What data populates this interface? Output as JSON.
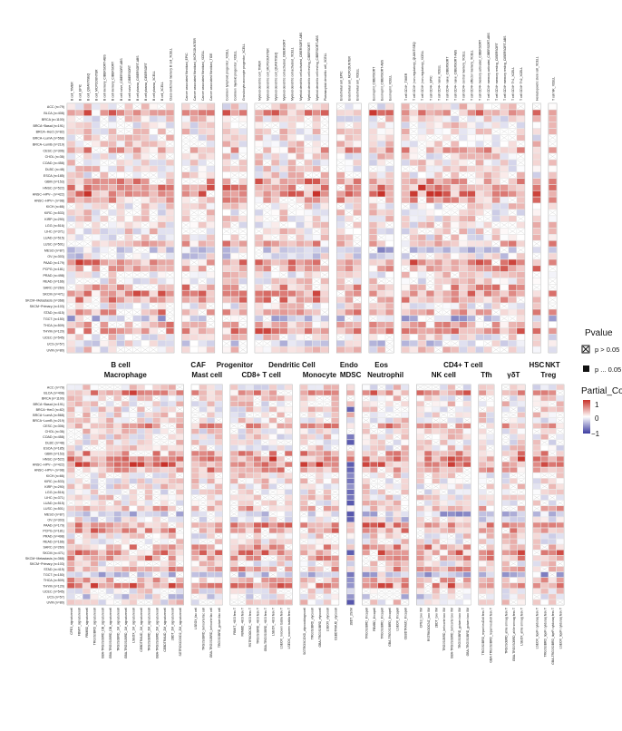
{
  "chart_data": {
    "type": "heatmap",
    "cancer_types": [
      "ACC (n=79)",
      "BLCA (n=408)",
      "BRCA (n=1100)",
      "BRCA−Basal (n=191)",
      "BRCA−Her2 (n=82)",
      "BRCA−LumA (n=568)",
      "BRCA−LumB (n=219)",
      "CESC (n=306)",
      "CHOL (n=36)",
      "COAD (n=458)",
      "DLBC (n=48)",
      "ESCA (n=185)",
      "GBM (n=153)",
      "HNSC (n=522)",
      "HNSC−HPV− (n=422)",
      "HNSC−HPV+ (n=98)",
      "KICH (n=66)",
      "KIRC (n=533)",
      "KIRP (n=290)",
      "LGG (n=516)",
      "LIHC (n=371)",
      "LUAD (n=515)",
      "LUSC (n=501)",
      "MESO (n=87)",
      "OV (n=303)",
      "PAAD (n=179)",
      "PCPG (n=181)",
      "PRAD (n=498)",
      "READ (n=166)",
      "SARC (n=260)",
      "SKCM (n=471)",
      "SKCM−Metastasis (n=368)",
      "SKCM−Primary (n=103)",
      "STAD (n=415)",
      "TGCT (n=150)",
      "THCA (n=509)",
      "THYM (n=120)",
      "UCEC (n=545)",
      "UCS (n=57)",
      "UVM (n=80)"
    ],
    "top_panel": [
      {
        "name": "B cell",
        "cells": [
          "B cell_TIMER",
          "B cell_EPIC",
          "B cell_QUANTISEQ",
          "B cell_MCPCOUNTER",
          "B cell memory_CIBERSORT-ABS",
          "B cell memory_CIBERSORT",
          "B cell naive_CIBERSORT-ABS",
          "B cell naive_CIBERSORT",
          "B cell plasma_CIBERSORT-ABS",
          "B cell plasma_CIBERSORT",
          "B cell plasma_XCELL",
          "B cell_XCELL",
          "Class-switched memory B cell_XCELL"
        ]
      },
      {
        "name": "CAF",
        "cells": [
          "Cancer associated fibroblast_EPIC",
          "Cancer associated fibroblast_MCPCOUNTER",
          "Cancer associated fibroblast_XCELL",
          "Cancer associated fibroblast_TIDE"
        ]
      },
      {
        "name": "Progenitor",
        "cells": [
          "Common lymphoid progenitor_XCELL",
          "Common myeloid progenitor_XCELL",
          "Granulocyte-monocyte progenitor_XCELL"
        ]
      },
      {
        "name": "Dendritic Cell",
        "cells": [
          "Myeloid dendritic cell_TIMER",
          "Myeloid dendritic cell_MCPCOUNTER",
          "Myeloid dendritic cell_QUANTISEQ",
          "Myeloid dendritic cell activated_CIBERSORT",
          "Myeloid dendritic cell activated_XCELL",
          "Myeloid dendritic cell activated_CIBERSORT-ABS",
          "Myeloid dendritic cell resting_CIBERSORT",
          "Myeloid dendritic cell resting_CIBERSORT-ABS",
          "Plasmacytoid dendritic cell_XCELL"
        ]
      },
      {
        "name": "Endo",
        "cells": [
          "Endothelial cell_EPIC",
          "Endothelial cell_MCPCOUNTER",
          "Endothelial cell_XCELL"
        ]
      },
      {
        "name": "Eos",
        "cells": [
          "Eosinophil_CIBERSORT",
          "Eosinophil_CIBERSORT-ABS",
          "Eosinophil_XCELL"
        ]
      },
      {
        "name": "CD4+ T cell",
        "cells": [
          "T cell CD4+_TIMER",
          "T cell CD4+ (non-regulatory)_QUANTISEQ",
          "T cell CD4+ (non-regulatory)_XCELL",
          "T cell CD4+_EPIC",
          "T cell CD4+ naive_XCELL",
          "T cell CD4+ naive_CIBERSORT",
          "T cell CD4+ naive_CIBERSORT-ABS",
          "T cell CD4+ central memory_XCELL",
          "T cell CD4+ effector memory_XCELL",
          "T cell CD4+ memory activated_CIBERSORT",
          "T cell CD4+ memory activated_CIBERSORT-ABS",
          "T cell CD4+ memory resting_CIBERSORT",
          "T cell CD4+ memory resting_CIBERSORT-ABS",
          "T cell CD4+ Th1_XCELL",
          "T cell CD4+ Th2_XCELL"
        ]
      },
      {
        "name": "HSC",
        "cells": [
          "Hematopoietic stem cell_XCELL"
        ]
      },
      {
        "name": "NKT",
        "cells": [
          "T cell NK_XCELL"
        ]
      }
    ],
    "bottom_panel": [
      {
        "name": "Macrophage",
        "cells": [
          "CPE3_signaturecell",
          "FBMIT_signaturecell",
          "FBMBD_signaturecell",
          "TRG0S0BRD_signaturecell",
          "GBA-TRG0S0BRD_DB_signaturecell",
          "GBA-TRG0S0BRD_DB_signaturecell",
          "TRG0S0BRD_1M_signaturecell",
          "GBA-TRG0S0BRD_1M_signaturecell",
          "LSEOX_1M_signaturecell",
          "CEBDTRAUD_1M_signaturecell",
          "TRG0S0BRD_2M_signaturecell",
          "GBA-TRG0S0BRD_2M_signaturecell",
          "CEBDTRAUD_2M_signaturecell",
          "2BDT_2M_signaturecell",
          "SGTROXCOXD2_2M_signaturecell"
        ]
      },
      {
        "name": "Mast cell",
        "cells": [
          "LSEOX_fac cell",
          "TRG0S0BRD_behcorte fac cell",
          "GBA-TRG0S0BRD_behcorte fac cell",
          "TRG0S0BRD_gotaen fac cell"
        ]
      },
      {
        "name": "CD8+ T cell",
        "cells": [
          "FBMIT_+803 fesv T",
          "FBMBD_+803 fesv T",
          "RSTRKOOCNZ_+803 fesv T",
          "TRG0S0BRD_+803 fesv T",
          "GBA-TRG0S0BRD_+803 fesv T",
          "LSEOX_+803 fesv T",
          "LSEOX_rocceen tcabla fesv T",
          "LSEOX_rocceen tcabla fesv T"
        ]
      },
      {
        "name": "Monocyte",
        "cells": [
          "SGTROXCOXD_alycocdolagrocell",
          "TRG0S0BRD_elycocell",
          "GBA-TRG0S0BRD_elycocell",
          "LSEOX_elycocell",
          "CEBDTRAUD_elycocell"
        ]
      },
      {
        "name": "MDSC",
        "cells": [
          "2BDT_2S0M"
        ]
      },
      {
        "name": "Neutrophil",
        "cells": [
          "TRG0S0BRD_lihcapell",
          "FBMBD_lihcapell",
          "TRG0S0BRD_lihcapell",
          "GBA-TRG0S0BRD_lihcapell",
          "LSEOX_lihcapell",
          "CEBDTRAUD_lihcapell"
        ]
      },
      {
        "name": "NK cell",
        "cells": [
          "CPE3_bxo XM",
          "RSTRKOOCNZ_bxo XM",
          "2BDT_bxo XM",
          "TRG0S0BRD_behcorte bxo XM",
          "GBA-TRG0S0BRD_behcorte bxo XM",
          "TRG0S0BRD_gotaen bxo XM",
          "GBA-TRG0S0BRD_gotaen bxo XM"
        ]
      },
      {
        "name": "Tfh",
        "cells": [
          "TRG0S0BRD_repari ieuDoll fesv T",
          "GBA-TRG0S0BRD_repari ieuDoll fesv T"
        ]
      },
      {
        "name": "γδT",
        "cells": [
          "TRG0S0BRD_ahlie srnnag fesv T",
          "GBA-TRG0S0BRD_ahlie srnnag fesv T",
          "LSEOX_ahlie srnnag fesv T"
        ]
      },
      {
        "name": "Treg",
        "cells": [
          "LSEOX_tiqeFi cyiduraq fesv T",
          "TRG0S0BRD_tiqeFi cyiduraq fesv T",
          "GBA-TRG0S0BRD_tiqeFi cyiduraq fesv T",
          "LSEOX_tiqeFi cyiduraq fesv T"
        ]
      }
    ],
    "colorscale": {
      "low": -1,
      "mid": 0,
      "high": 1,
      "low_color": "#3c3ca0",
      "mid_color": "#ffffff",
      "high_color": "#c8322a"
    },
    "legend": {
      "pvalue_title": "Pvalue",
      "pvalue_ns": "p > 0.05",
      "pvalue_sig": "p ... 0.05",
      "cor_title": "Partial_Cor",
      "cor_ticks": [
        "1",
        "0",
        "−1"
      ]
    }
  }
}
